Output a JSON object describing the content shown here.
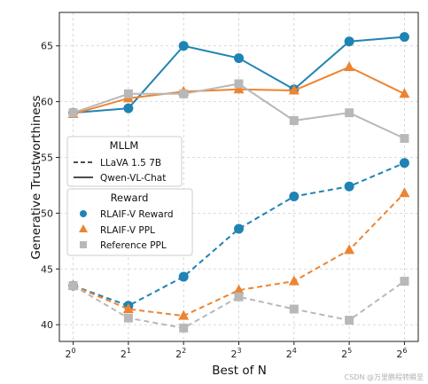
{
  "chart_data": {
    "type": "line",
    "xlabel": "Best of N",
    "ylabel": "Generative Trustworthiness",
    "x": [
      0,
      1,
      2,
      3,
      4,
      5,
      6
    ],
    "x_tick_base": "2",
    "x_tick_exponents": [
      "0",
      "1",
      "2",
      "3",
      "4",
      "5",
      "6"
    ],
    "ylim": [
      38.5,
      68
    ],
    "y_ticks": [
      "40",
      "45",
      "50",
      "55",
      "60",
      "65"
    ],
    "grid": true,
    "series": [
      {
        "name": "RLAIF-V Reward",
        "model": "Qwen-VL-Chat",
        "color": "#1f83b4",
        "marker": "circle",
        "values": [
          59.0,
          59.4,
          65.0,
          63.9,
          61.1,
          65.4,
          65.8
        ]
      },
      {
        "name": "RLAIF-V PPL",
        "model": "Qwen-VL-Chat",
        "color": "#ee8430",
        "marker": "triangle",
        "values": [
          58.9,
          60.3,
          60.9,
          61.1,
          61.0,
          63.1,
          60.7
        ]
      },
      {
        "name": "Reference PPL",
        "model": "Qwen-VL-Chat",
        "color": "#b8b8b8",
        "marker": "square",
        "values": [
          59.0,
          60.7,
          60.7,
          61.6,
          58.3,
          59.0,
          56.7
        ]
      },
      {
        "name": "RLAIF-V Reward",
        "model": "LLaVA 1.5 7B",
        "color": "#1f83b4",
        "marker": "circle",
        "values": [
          43.5,
          41.7,
          44.3,
          48.6,
          51.5,
          52.4,
          54.5
        ]
      },
      {
        "name": "RLAIF-V PPL",
        "model": "LLaVA 1.5 7B",
        "color": "#ee8430",
        "marker": "triangle",
        "values": [
          43.5,
          41.4,
          40.8,
          43.1,
          43.9,
          46.7,
          51.8
        ]
      },
      {
        "name": "Reference PPL",
        "model": "LLaVA 1.5 7B",
        "color": "#b8b8b8",
        "marker": "square",
        "values": [
          43.5,
          40.6,
          39.7,
          42.5,
          41.4,
          40.4,
          43.9
        ]
      }
    ],
    "legend_mllm": {
      "title": "MLLM",
      "entries": [
        {
          "label": "LLaVA 1.5 7B",
          "style": "dashed"
        },
        {
          "label": "Qwen-VL-Chat",
          "style": "solid"
        }
      ],
      "placement": "center-left"
    },
    "legend_reward": {
      "title": "Reward",
      "entries": [
        {
          "label": "RLAIF-V Reward",
          "marker": "circle",
          "color": "#1f83b4"
        },
        {
          "label": "RLAIF-V PPL",
          "marker": "triangle",
          "color": "#ee8430"
        },
        {
          "label": "Reference PPL",
          "marker": "square",
          "color": "#b8b8b8"
        }
      ],
      "placement": "center-left"
    }
  },
  "watermark": "CSDN @万里鹏程转瞬至"
}
